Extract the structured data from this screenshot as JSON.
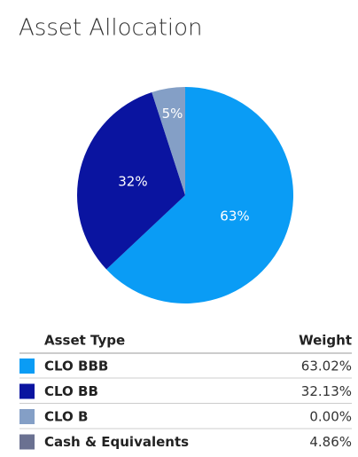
{
  "chart_data": {
    "type": "pie",
    "title": "Asset Allocation",
    "values": [
      63,
      32,
      5
    ],
    "value_labels": [
      "63%",
      "32%",
      "5%"
    ],
    "colors": [
      "#0a9cf5",
      "#0a14a0",
      "#849fc6"
    ]
  },
  "table": {
    "columns": [
      "Asset Type",
      "Weight"
    ],
    "rows": [
      [
        "CLO BBB",
        "63.02%"
      ],
      [
        "CLO BB",
        "32.13%"
      ],
      [
        "CLO B",
        "0.00%"
      ],
      [
        "Cash & Equivalents",
        "4.86%"
      ]
    ],
    "colors": [
      "#0a9cf5",
      "#0a14a0",
      "#849fc6",
      "#6a7191"
    ]
  }
}
